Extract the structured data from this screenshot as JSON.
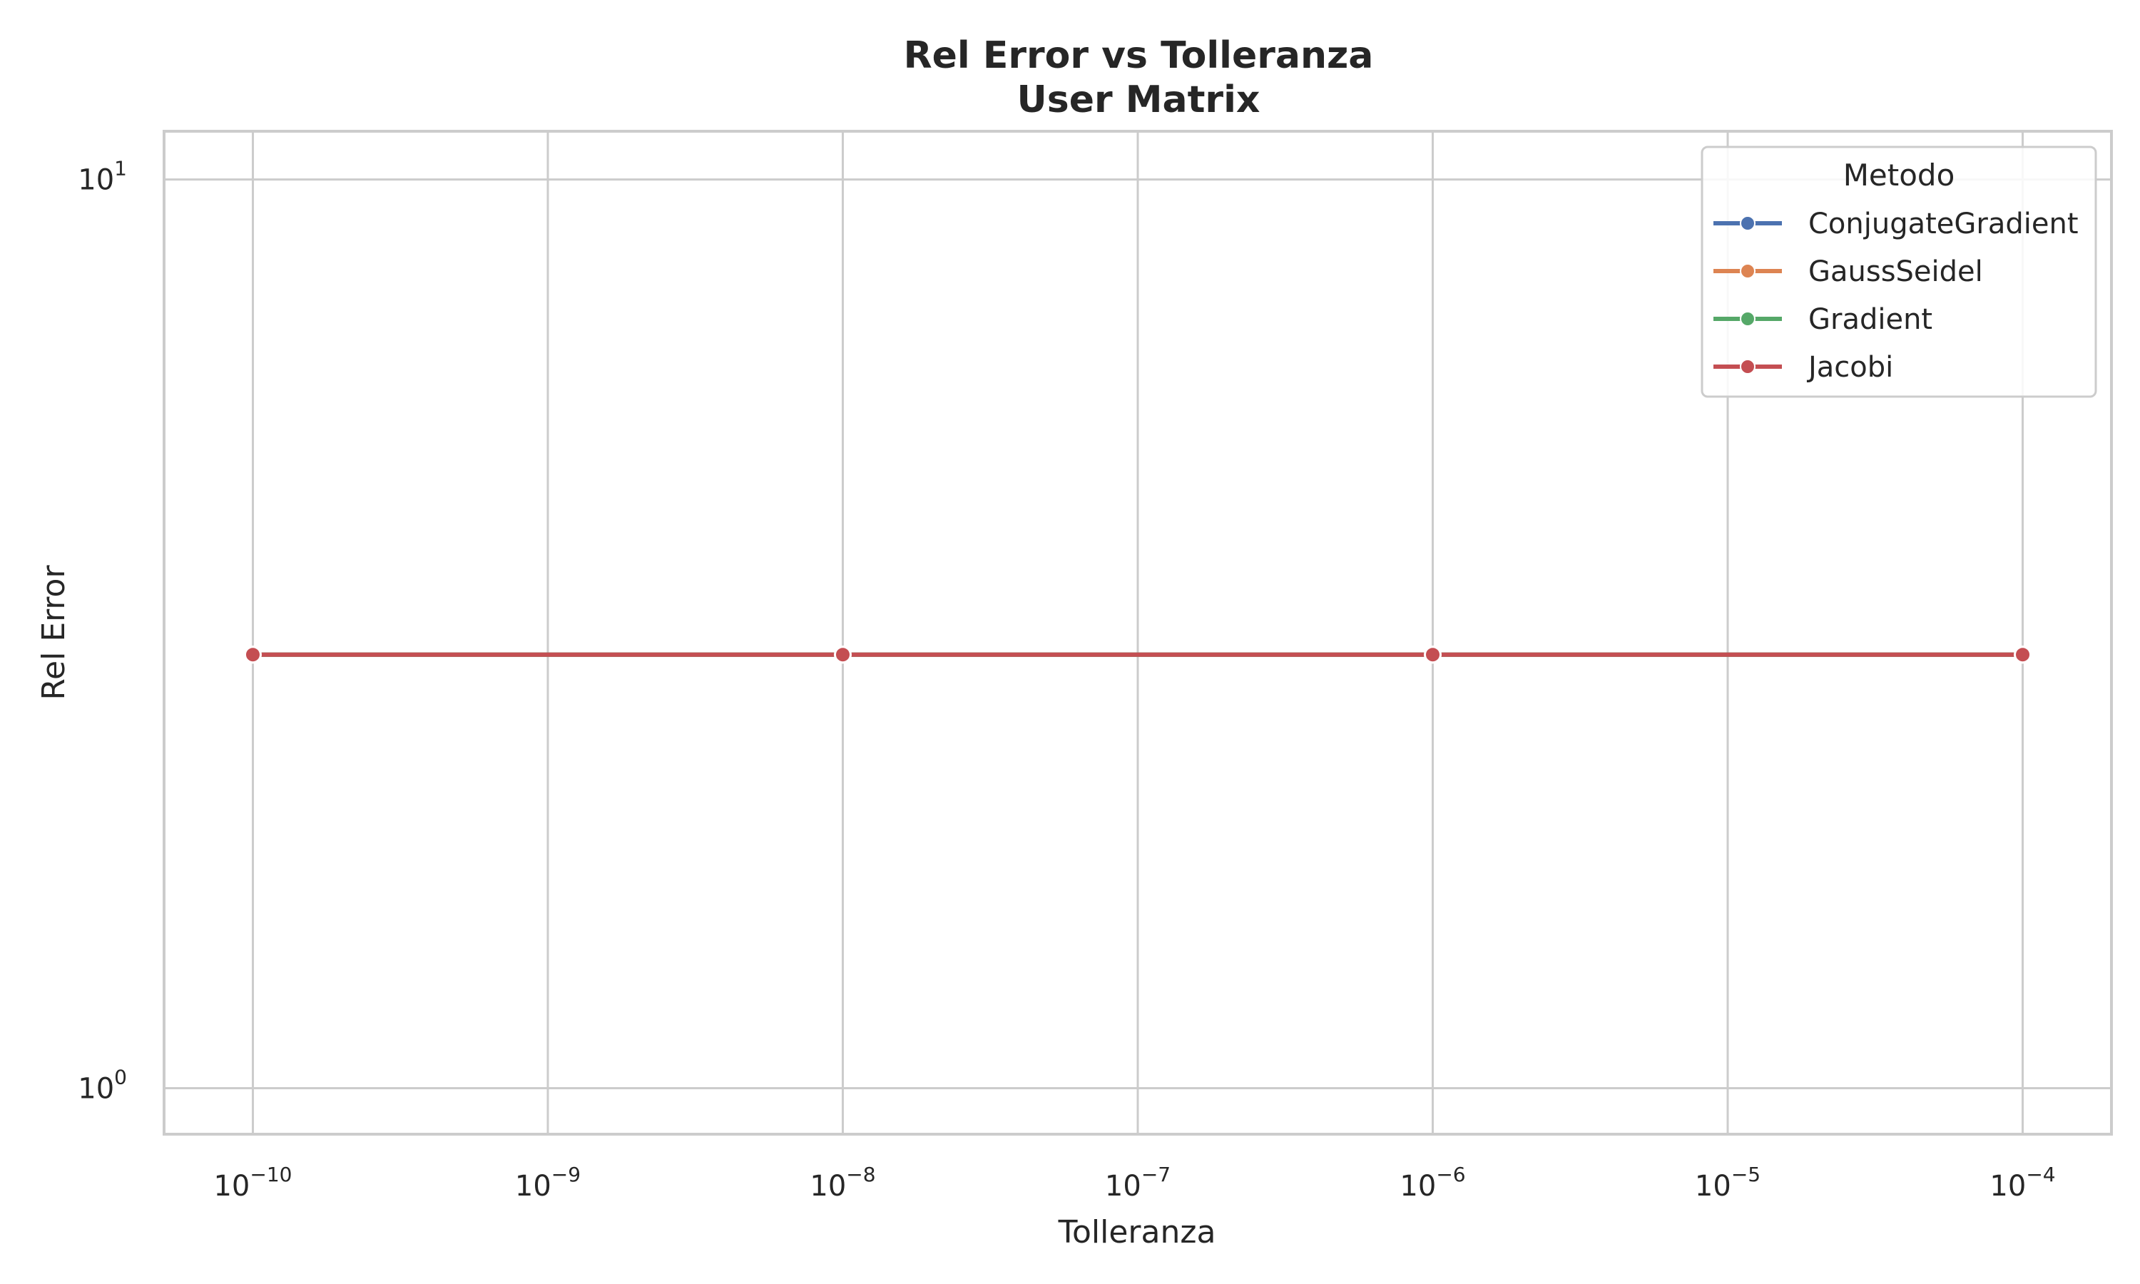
{
  "chart_data": {
    "type": "line",
    "title": "Rel Error vs Tolleranza",
    "subtitle": "User Matrix",
    "xlabel": "Tolleranza",
    "ylabel": "Rel Error",
    "xscale": "log",
    "yscale": "log",
    "xlim": [
      5e-11,
      0.0002
    ],
    "ylim": [
      0.89,
      11.3
    ],
    "grid": true,
    "xticks": [
      {
        "value": 1e-10,
        "base": "10",
        "exp": "−10"
      },
      {
        "value": 1e-09,
        "base": "10",
        "exp": "−9"
      },
      {
        "value": 1e-08,
        "base": "10",
        "exp": "−8"
      },
      {
        "value": 1e-07,
        "base": "10",
        "exp": "−7"
      },
      {
        "value": 1e-06,
        "base": "10",
        "exp": "−6"
      },
      {
        "value": 1e-05,
        "base": "10",
        "exp": "−5"
      },
      {
        "value": 0.0001,
        "base": "10",
        "exp": "−4"
      }
    ],
    "yticks": [
      {
        "value": 1,
        "base": "10",
        "exp": "0"
      },
      {
        "value": 10,
        "base": "10",
        "exp": "1"
      }
    ],
    "legend": {
      "title": "Metodo",
      "placement": "top-right"
    },
    "series": [
      {
        "name": "ConjugateGradient",
        "color": "#4c72b0",
        "x": [
          1e-10,
          1e-08,
          1e-06,
          0.0001
        ],
        "y": [
          3.0,
          3.0,
          3.0,
          3.0
        ]
      },
      {
        "name": "GaussSeidel",
        "color": "#dd8452",
        "x": [
          1e-10,
          1e-08,
          1e-06,
          0.0001
        ],
        "y": [
          3.0,
          3.0,
          3.0,
          3.0
        ]
      },
      {
        "name": "Gradient",
        "color": "#55a868",
        "x": [
          1e-10,
          1e-08,
          1e-06,
          0.0001
        ],
        "y": [
          3.0,
          3.0,
          3.0,
          3.0
        ]
      },
      {
        "name": "Jacobi",
        "color": "#c44e52",
        "x": [
          1e-10,
          1e-08,
          1e-06,
          0.0001
        ],
        "y": [
          3.0,
          3.0,
          3.0,
          3.0
        ]
      }
    ]
  }
}
